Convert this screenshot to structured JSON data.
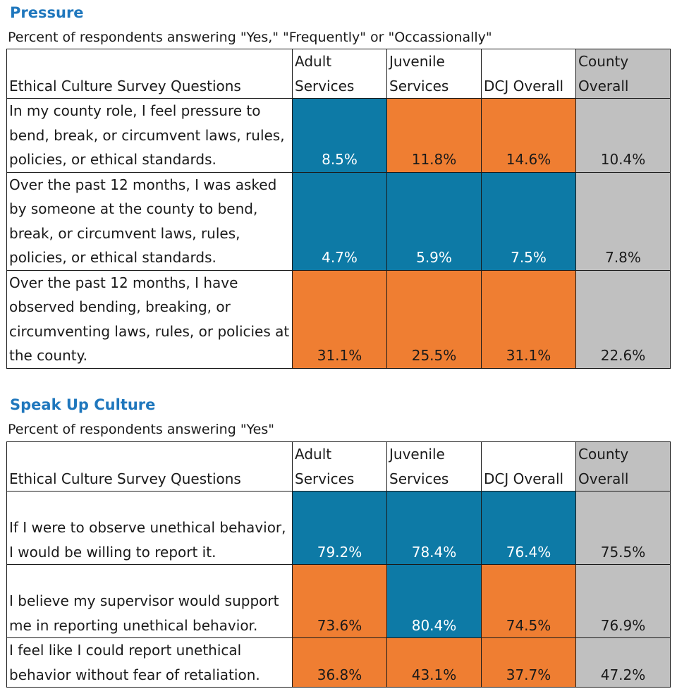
{
  "columns": [
    "Ethical Culture Survey Questions",
    "Adult\nServices",
    "Juvenile\nServices",
    "DCJ Overall",
    "County\nOverall"
  ],
  "sections": [
    {
      "title": "Pressure",
      "subtitle": "Percent of respondents answering \"Yes,\" \"Frequently\" or \"Occassionally\"",
      "rows": [
        {
          "question": "In my county role, I feel pressure to bend, break, or circumvent laws, rules, policies, or ethical standards.",
          "values": [
            "8.5%",
            "11.8%",
            "14.6%",
            "10.4%"
          ],
          "colors": [
            "blue",
            "orange",
            "orange",
            "gray"
          ]
        },
        {
          "question": "Over the past 12 months, I was asked by someone at the county to bend, break, or circumvent laws, rules, policies, or ethical standards.",
          "values": [
            "4.7%",
            "5.9%",
            "7.5%",
            "7.8%"
          ],
          "colors": [
            "blue",
            "blue",
            "blue",
            "gray"
          ]
        },
        {
          "question": "Over the past 12 months, I have observed bending, breaking, or circumventing laws, rules, or policies at the county.",
          "values": [
            "31.1%",
            "25.5%",
            "31.1%",
            "22.6%"
          ],
          "colors": [
            "orange",
            "orange",
            "orange",
            "gray"
          ]
        }
      ]
    },
    {
      "title": "Speak Up Culture",
      "subtitle": "Percent of respondents answering \"Yes\"",
      "rows": [
        {
          "question": "If I were to observe unethical behavior, I would be willing to report it.",
          "values": [
            "79.2%",
            "78.4%",
            "76.4%",
            "75.5%"
          ],
          "colors": [
            "blue",
            "blue",
            "blue",
            "gray"
          ]
        },
        {
          "question": "I believe my supervisor would support me in reporting unethical behavior.",
          "values": [
            "73.6%",
            "80.4%",
            "74.5%",
            "76.9%"
          ],
          "colors": [
            "orange",
            "blue",
            "orange",
            "gray"
          ]
        },
        {
          "question": "I feel like I could report unethical behavior without fear of retaliation.",
          "values": [
            "36.8%",
            "43.1%",
            "37.7%",
            "47.2%"
          ],
          "colors": [
            "orange",
            "orange",
            "orange",
            "gray"
          ]
        }
      ]
    }
  ],
  "colors": {
    "blue": "#0d7aa6",
    "orange": "#ef7e32",
    "gray": "#c0c0c0",
    "title": "#1f77bd"
  }
}
